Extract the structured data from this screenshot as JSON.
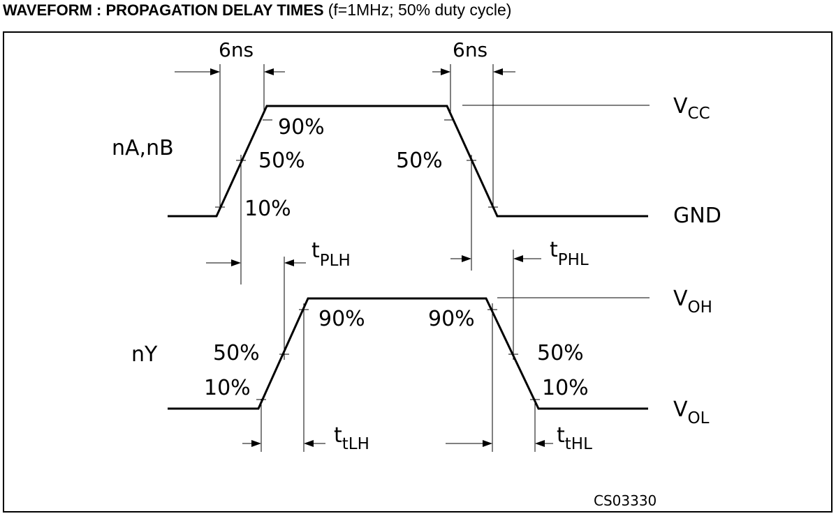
{
  "header": {
    "title": "WAVEFORM : PROPAGATION DELAY TIMES",
    "subtitle": "(f=1MHz; 50% duty cycle)"
  },
  "input": {
    "signal_name": "nA,nB",
    "rise_time_label": "6ns",
    "fall_time_label": "6ns",
    "rise_pct_90": "90%",
    "rise_pct_50": "50%",
    "rise_pct_10": "10%",
    "fall_pct_50": "50%",
    "level_high": {
      "main": "V",
      "sub": "CC"
    },
    "level_low": "GND"
  },
  "output": {
    "signal_name": "nY",
    "rise_pct_90": "90%",
    "rise_pct_50": "50%",
    "rise_pct_10": "10%",
    "fall_pct_90": "90%",
    "fall_pct_50": "50%",
    "fall_pct_10": "10%",
    "level_high": {
      "main": "V",
      "sub": "OH"
    },
    "level_low": {
      "main": "V",
      "sub": "OL"
    }
  },
  "timing": {
    "tplh": {
      "main": "t",
      "sub": "PLH"
    },
    "tphl": {
      "main": "t",
      "sub": "PHL"
    },
    "ttlh": {
      "main": "t",
      "sub": "tLH"
    },
    "tthl": {
      "main": "t",
      "sub": "tHL"
    }
  },
  "figure_ref": "CS03330",
  "colors": {
    "line": "#000000",
    "background": "#ffffff"
  }
}
